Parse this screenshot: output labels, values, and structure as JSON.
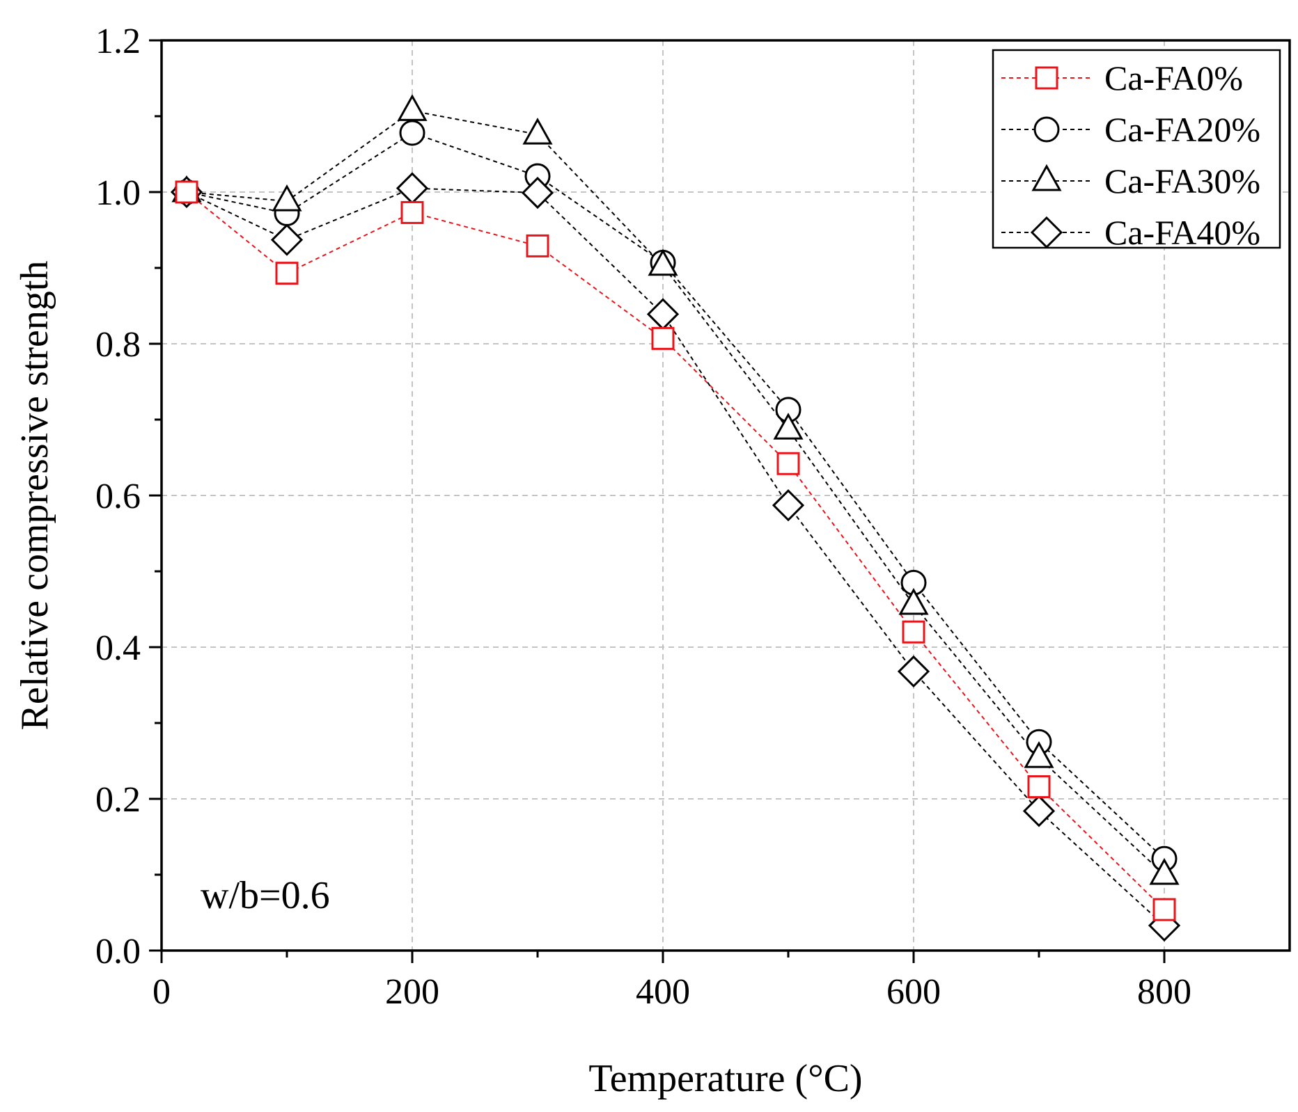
{
  "chart_data": {
    "type": "line",
    "title": "",
    "xlabel": "Temperature (°C)",
    "ylabel": "Relative compressive strength",
    "xlim": [
      0,
      900
    ],
    "ylim": [
      0.0,
      1.2
    ],
    "xticks": [
      0,
      200,
      400,
      600,
      800
    ],
    "xtick_labels": [
      "0",
      "200",
      "400",
      "600",
      "800"
    ],
    "yticks": [
      0.0,
      0.2,
      0.4,
      0.6,
      0.8,
      1.0,
      1.2
    ],
    "ytick_labels": [
      "0.0",
      "0.2",
      "0.4",
      "0.6",
      "0.8",
      "1.0",
      "1.2"
    ],
    "grid": true,
    "legend_position": "top-right",
    "annotation": "w/b=0.6",
    "x": [
      20,
      100,
      200,
      300,
      400,
      500,
      600,
      700,
      800
    ],
    "series": [
      {
        "name": "Ca-FA0%",
        "marker": "square",
        "color": "#e8141a",
        "values": [
          1.0,
          0.893,
          0.973,
          0.929,
          0.807,
          0.642,
          0.42,
          0.216,
          0.054
        ]
      },
      {
        "name": "Ca-FA20%",
        "marker": "circle",
        "color": "#000000",
        "values": [
          1.0,
          0.972,
          1.078,
          1.021,
          0.907,
          0.713,
          0.485,
          0.275,
          0.121
        ]
      },
      {
        "name": "Ca-FA30%",
        "marker": "triangle",
        "color": "#000000",
        "values": [
          1.0,
          0.988,
          1.107,
          1.076,
          0.903,
          0.687,
          0.456,
          0.254,
          0.1
        ]
      },
      {
        "name": "Ca-FA40%",
        "marker": "diamond",
        "color": "#000000",
        "values": [
          1.0,
          0.937,
          1.005,
          0.999,
          0.839,
          0.587,
          0.368,
          0.184,
          0.033
        ]
      }
    ]
  }
}
